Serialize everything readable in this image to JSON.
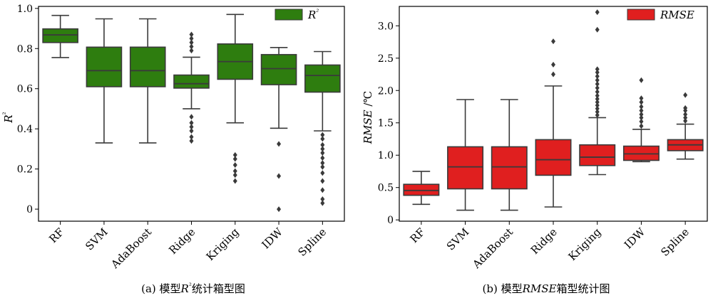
{
  "chart_data": [
    {
      "type": "box",
      "caption": "(a) 模型R²统计箱型图",
      "ylabel": "R²",
      "legend": {
        "label": "R²",
        "color": "#2e7d0f",
        "position": "top-right"
      },
      "ylim": [
        -0.06,
        1.01
      ],
      "yticks": [
        0,
        0.2,
        0.4,
        0.6,
        0.8,
        1.0
      ],
      "ytick_labels": [
        "0",
        "0.2",
        "0.4",
        "0.6",
        "0.8",
        "1.0"
      ],
      "categories": [
        "RF",
        "SVM",
        "AdaBoost",
        "Ridge",
        "Kriging",
        "IDW",
        "Spline"
      ],
      "boxes": [
        {
          "min": 0.755,
          "q1": 0.83,
          "median": 0.868,
          "q3": 0.898,
          "max": 0.965,
          "outliers": []
        },
        {
          "min": 0.33,
          "q1": 0.61,
          "median": 0.69,
          "q3": 0.807,
          "max": 0.948,
          "outliers": []
        },
        {
          "min": 0.33,
          "q1": 0.61,
          "median": 0.69,
          "q3": 0.807,
          "max": 0.948,
          "outliers": []
        },
        {
          "min": 0.5,
          "q1": 0.603,
          "median": 0.625,
          "q3": 0.668,
          "max": 0.757,
          "outliers": [
            0.34,
            0.36,
            0.39,
            0.41,
            0.43,
            0.46,
            0.79,
            0.81,
            0.83,
            0.85,
            0.87
          ]
        },
        {
          "min": 0.43,
          "q1": 0.647,
          "median": 0.735,
          "q3": 0.823,
          "max": 0.97,
          "outliers": [
            0.14,
            0.17,
            0.19,
            0.22,
            0.25,
            0.27
          ]
        },
        {
          "min": 0.403,
          "q1": 0.62,
          "median": 0.7,
          "q3": 0.77,
          "max": 0.805,
          "outliers": [
            0.0,
            0.165,
            0.325
          ]
        },
        {
          "min": 0.39,
          "q1": 0.583,
          "median": 0.666,
          "q3": 0.718,
          "max": 0.785,
          "outliers": [
            0.03,
            0.05,
            0.095,
            0.14,
            0.18,
            0.21,
            0.23,
            0.255,
            0.28,
            0.3,
            0.32,
            0.35,
            0.37
          ]
        }
      ]
    },
    {
      "type": "box",
      "caption": "(b) 模型RMSE箱型统计图",
      "ylabel": "RMSE /℃",
      "legend": {
        "label": "RMSE",
        "color": "#e01f1f",
        "position": "top-right"
      },
      "ylim": [
        -0.02,
        3.3
      ],
      "yticks": [
        0,
        0.5,
        1.0,
        1.5,
        2.0,
        2.5,
        3.0
      ],
      "ytick_labels": [
        "0",
        "0.5",
        "1.0",
        "1.5",
        "2.0",
        "2.5",
        "3.0"
      ],
      "categories": [
        "RF",
        "SVM",
        "AdaBoost",
        "Ridge",
        "Kriging",
        "IDW",
        "Spline"
      ],
      "boxes": [
        {
          "min": 0.24,
          "q1": 0.38,
          "median": 0.455,
          "q3": 0.55,
          "max": 0.75,
          "outliers": []
        },
        {
          "min": 0.15,
          "q1": 0.48,
          "median": 0.82,
          "q3": 1.13,
          "max": 1.86,
          "outliers": []
        },
        {
          "min": 0.15,
          "q1": 0.48,
          "median": 0.82,
          "q3": 1.13,
          "max": 1.86,
          "outliers": []
        },
        {
          "min": 0.2,
          "q1": 0.69,
          "median": 0.93,
          "q3": 1.24,
          "max": 2.07,
          "outliers": [
            2.25,
            2.4,
            2.76
          ]
        },
        {
          "min": 0.7,
          "q1": 0.84,
          "median": 0.97,
          "q3": 1.16,
          "max": 1.58,
          "outliers": [
            1.62,
            1.67,
            1.72,
            1.77,
            1.82,
            1.87,
            1.92,
            1.98,
            2.04,
            2.1,
            2.16,
            2.22,
            2.28,
            2.33,
            2.94,
            3.21
          ]
        },
        {
          "min": 0.9,
          "q1": 0.92,
          "median": 1.02,
          "q3": 1.14,
          "max": 1.4,
          "outliers": [
            1.45,
            1.52,
            1.58,
            1.63,
            1.69,
            1.75,
            1.82,
            1.88,
            2.16
          ]
        },
        {
          "min": 0.94,
          "q1": 1.07,
          "median": 1.16,
          "q3": 1.24,
          "max": 1.48,
          "outliers": [
            1.53,
            1.58,
            1.63,
            1.69,
            1.73,
            1.93
          ]
        }
      ]
    }
  ]
}
